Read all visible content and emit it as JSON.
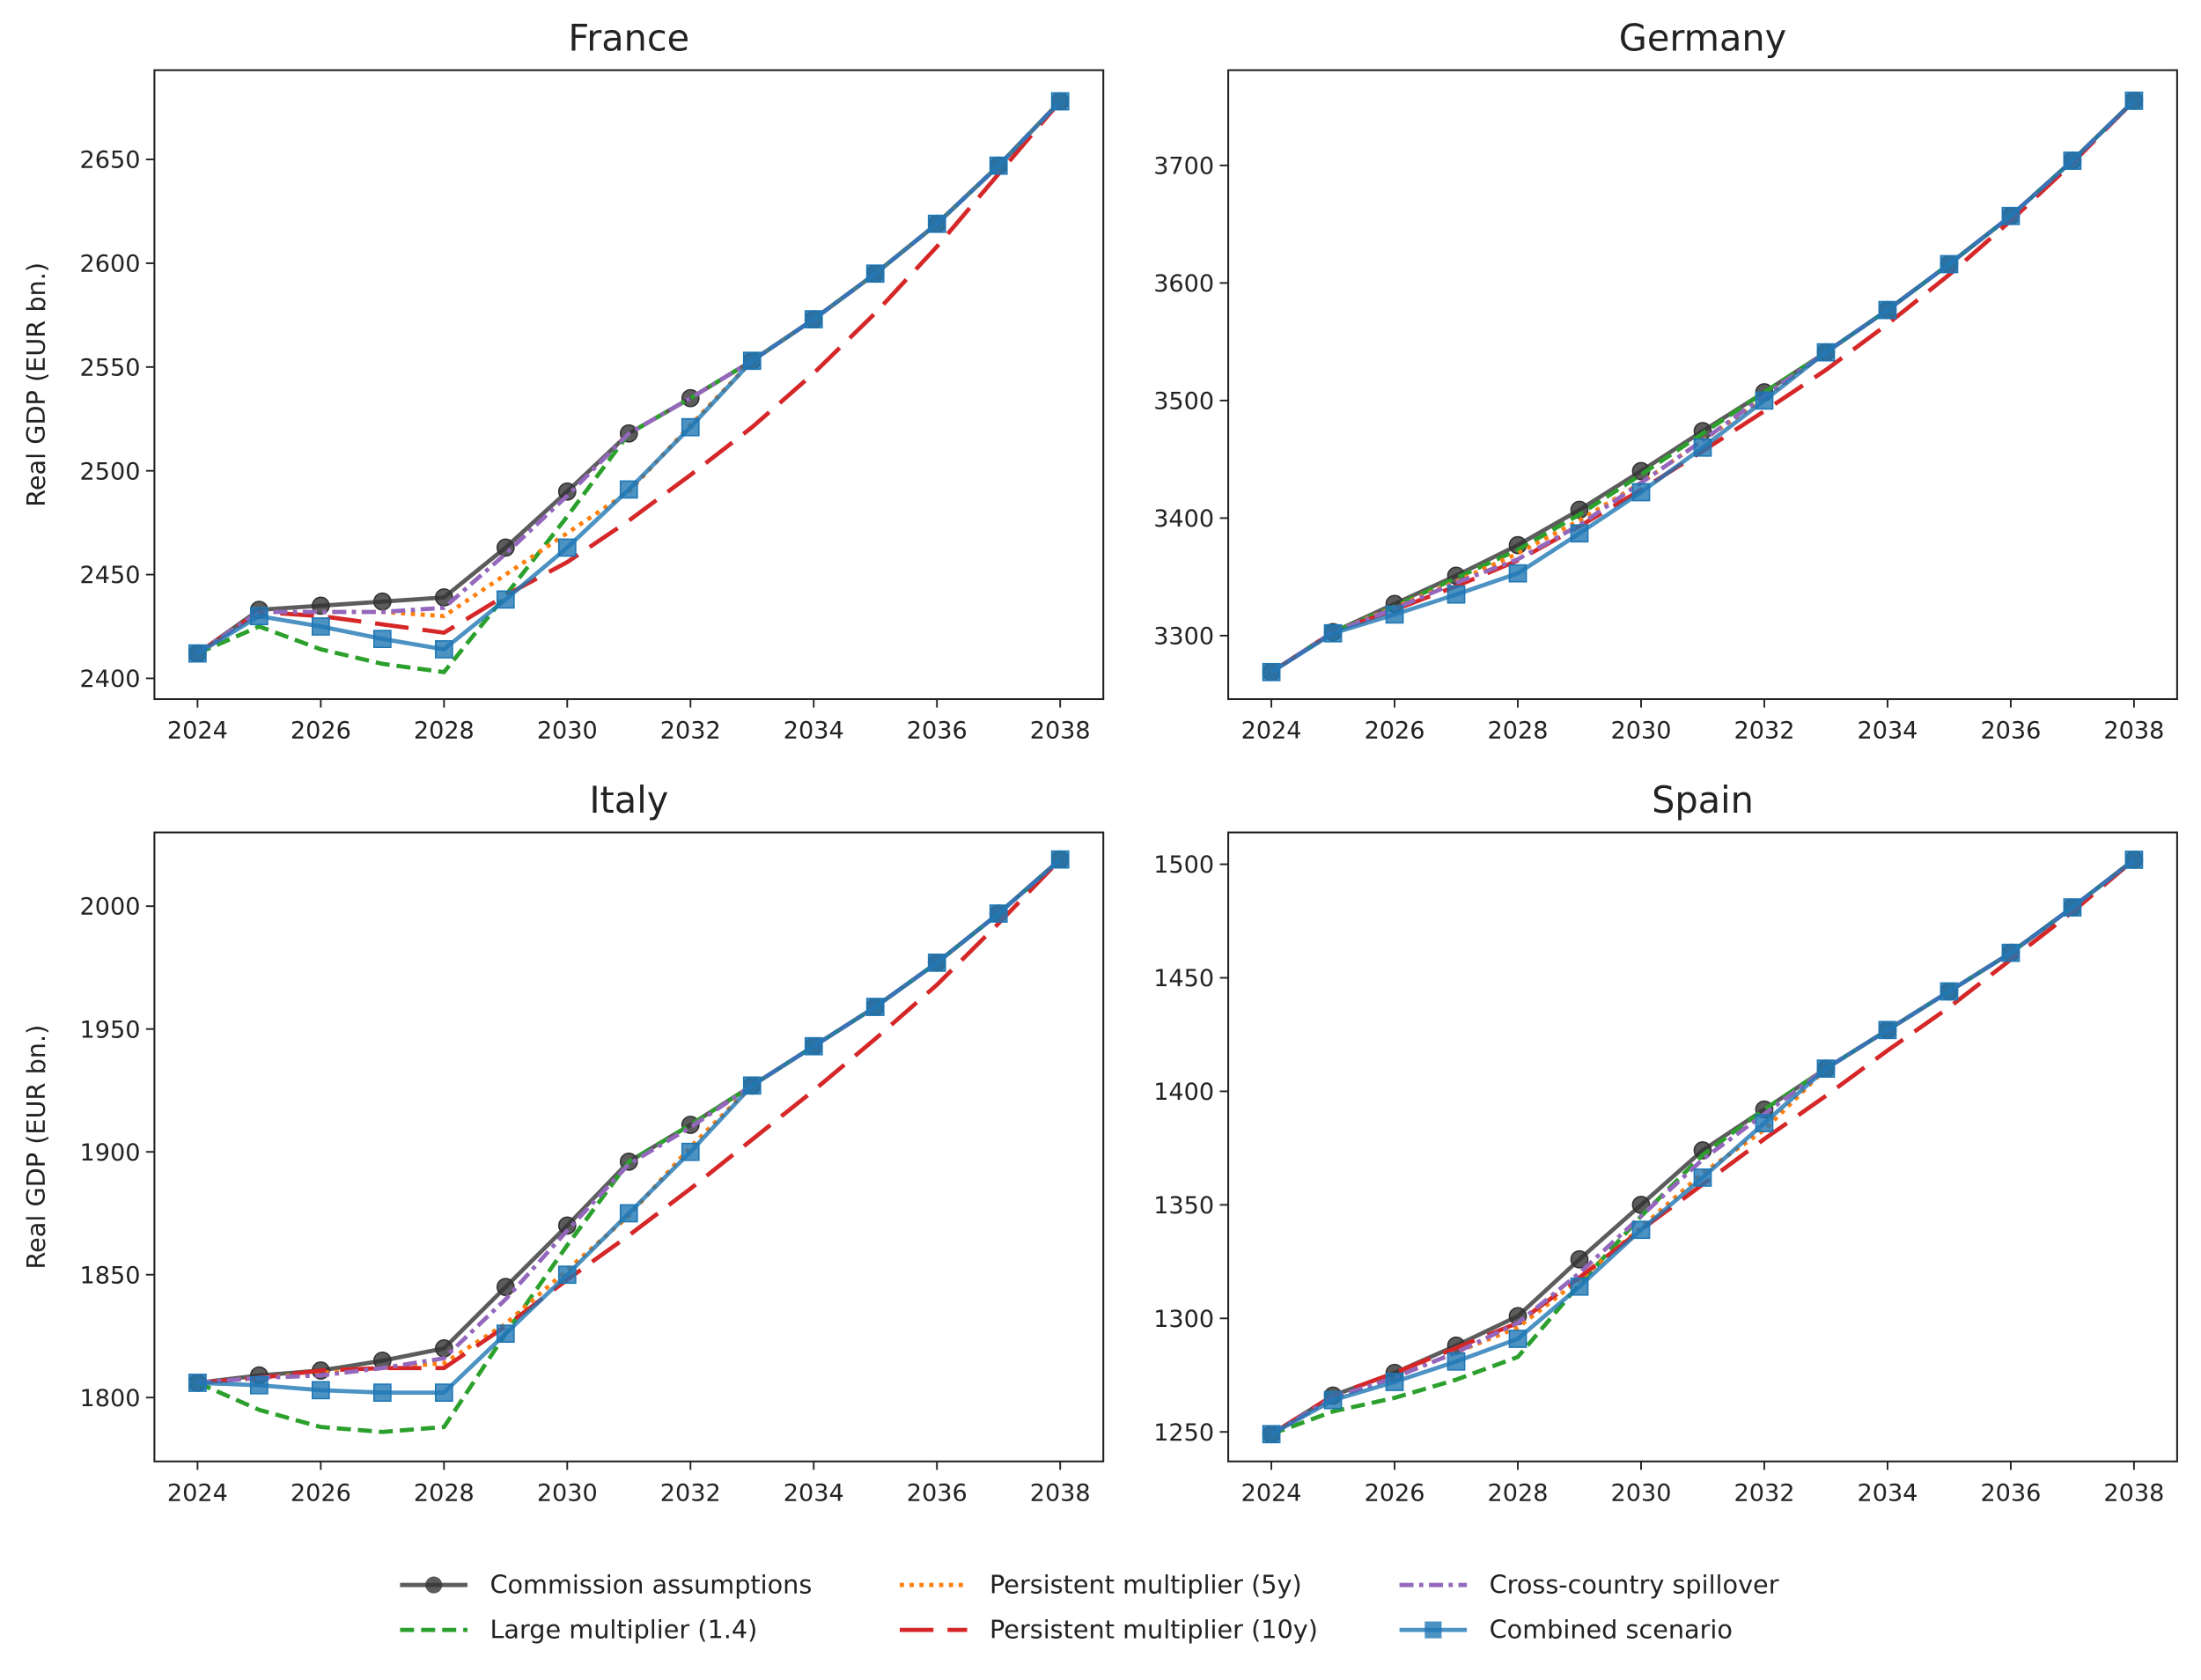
{
  "chart_data": [
    {
      "type": "line",
      "title": "France",
      "ylabel": "Real GDP (EUR bn.)",
      "x": [
        2024,
        2025,
        2026,
        2027,
        2028,
        2029,
        2030,
        2031,
        2032,
        2033,
        2034,
        2035,
        2036,
        2037,
        2038
      ],
      "xlim": [
        2023.3,
        2038.7
      ],
      "xticks": [
        2024,
        2026,
        2028,
        2030,
        2032,
        2034,
        2036,
        2038
      ],
      "ylim": [
        2390,
        2693
      ],
      "yticks": [
        2400,
        2450,
        2500,
        2550,
        2600,
        2650
      ],
      "series": [
        {
          "values": [
            2412,
            2433,
            2435,
            2437,
            2439,
            2463,
            2490,
            2518,
            2535,
            2553,
            2573,
            2595,
            2619,
            2647,
            2678
          ]
        },
        {
          "values": [
            2412,
            2425,
            2414,
            2407,
            2403,
            2440,
            2478,
            2518,
            2535,
            2553,
            2573,
            2595,
            2619,
            2647,
            2678
          ]
        },
        {
          "values": [
            2412,
            2432,
            2432,
            2432,
            2430,
            2450,
            2470,
            2490,
            2522,
            2553,
            2573,
            2595,
            2619,
            2647,
            2678
          ]
        },
        {
          "values": [
            2412,
            2432,
            2430,
            2426,
            2422,
            2440,
            2456,
            2476,
            2498,
            2521,
            2547,
            2576,
            2608,
            2643,
            2678
          ]
        },
        {
          "values": [
            2412,
            2432,
            2432,
            2432,
            2434,
            2460,
            2488,
            2518,
            2535,
            2553,
            2573,
            2595,
            2619,
            2647,
            2678
          ]
        },
        {
          "values": [
            2412,
            2430,
            2425,
            2419,
            2414,
            2438,
            2463,
            2491,
            2521,
            2553,
            2573,
            2595,
            2619,
            2647,
            2678
          ]
        }
      ]
    },
    {
      "type": "line",
      "title": "Germany",
      "x": [
        2024,
        2025,
        2026,
        2027,
        2028,
        2029,
        2030,
        2031,
        2032,
        2033,
        2034,
        2035,
        2036,
        2037,
        2038
      ],
      "xlim": [
        2023.3,
        2038.7
      ],
      "xticks": [
        2024,
        2026,
        2028,
        2030,
        2032,
        2034,
        2036,
        2038
      ],
      "ylim": [
        3246,
        3781
      ],
      "yticks": [
        3300,
        3400,
        3500,
        3600,
        3700
      ],
      "series": [
        {
          "values": [
            3269,
            3303,
            3327,
            3351,
            3377,
            3407,
            3440,
            3474,
            3507,
            3541,
            3577,
            3616,
            3657,
            3704,
            3755
          ]
        },
        {
          "values": [
            3269,
            3303,
            3325,
            3349,
            3373,
            3403,
            3437,
            3472,
            3507,
            3541,
            3577,
            3616,
            3657,
            3704,
            3755
          ]
        },
        {
          "values": [
            3269,
            3303,
            3324,
            3346,
            3370,
            3398,
            3430,
            3466,
            3502,
            3541,
            3577,
            3616,
            3657,
            3704,
            3755
          ]
        },
        {
          "values": [
            3269,
            3303,
            3322,
            3342,
            3364,
            3393,
            3424,
            3457,
            3491,
            3526,
            3565,
            3607,
            3653,
            3702,
            3755
          ]
        },
        {
          "values": [
            3269,
            3303,
            3323,
            3345,
            3365,
            3394,
            3430,
            3466,
            3504,
            3541,
            3577,
            3616,
            3657,
            3704,
            3755
          ]
        },
        {
          "values": [
            3269,
            3302,
            3318,
            3335,
            3353,
            3387,
            3422,
            3460,
            3500,
            3541,
            3577,
            3616,
            3657,
            3704,
            3755
          ]
        }
      ]
    },
    {
      "type": "line",
      "title": "Italy",
      "ylabel": "Real GDP (EUR bn.)",
      "x": [
        2024,
        2025,
        2026,
        2027,
        2028,
        2029,
        2030,
        2031,
        2032,
        2033,
        2034,
        2035,
        2036,
        2037,
        2038
      ],
      "xlim": [
        2023.3,
        2038.7
      ],
      "xticks": [
        2024,
        2026,
        2028,
        2030,
        2032,
        2034,
        2036,
        2038
      ],
      "ylim": [
        1774,
        2030
      ],
      "yticks": [
        1800,
        1850,
        1900,
        1950,
        2000
      ],
      "series": [
        {
          "values": [
            1806,
            1809,
            1811,
            1815,
            1820,
            1845,
            1870,
            1896,
            1911,
            1927,
            1943,
            1959,
            1977,
            1997,
            2019
          ]
        },
        {
          "values": [
            1806,
            1795,
            1788,
            1786,
            1788,
            1826,
            1862,
            1896,
            1911,
            1927,
            1943,
            1959,
            1977,
            1997,
            2019
          ]
        },
        {
          "values": [
            1806,
            1808,
            1810,
            1812,
            1814,
            1830,
            1852,
            1874,
            1902,
            1927,
            1943,
            1959,
            1977,
            1997,
            2019
          ]
        },
        {
          "values": [
            1806,
            1808,
            1811,
            1812,
            1812,
            1829,
            1848,
            1866,
            1885,
            1905,
            1925,
            1946,
            1968,
            1993,
            2019
          ]
        },
        {
          "values": [
            1806,
            1808,
            1809,
            1812,
            1816,
            1840,
            1868,
            1895,
            1910,
            1927,
            1943,
            1959,
            1977,
            1997,
            2019
          ]
        },
        {
          "values": [
            1806,
            1805,
            1803,
            1802,
            1802,
            1826,
            1850,
            1875,
            1900,
            1927,
            1943,
            1959,
            1977,
            1997,
            2019
          ]
        }
      ]
    },
    {
      "type": "line",
      "title": "Spain",
      "x": [
        2024,
        2025,
        2026,
        2027,
        2028,
        2029,
        2030,
        2031,
        2032,
        2033,
        2034,
        2035,
        2036,
        2037,
        2038
      ],
      "xlim": [
        2023.3,
        2038.7
      ],
      "xticks": [
        2024,
        2026,
        2028,
        2030,
        2032,
        2034,
        2036,
        2038
      ],
      "ylim": [
        1237,
        1514
      ],
      "yticks": [
        1250,
        1300,
        1350,
        1400,
        1450,
        1500
      ],
      "series": [
        {
          "values": [
            1249,
            1266,
            1276,
            1288,
            1301,
            1326,
            1350,
            1374,
            1392,
            1410,
            1427,
            1444,
            1461,
            1481,
            1502
          ]
        },
        {
          "values": [
            1249,
            1259,
            1265,
            1273,
            1283,
            1315,
            1345,
            1372,
            1392,
            1410,
            1427,
            1444,
            1461,
            1481,
            1502
          ]
        },
        {
          "values": [
            1249,
            1265,
            1274,
            1285,
            1296,
            1317,
            1340,
            1364,
            1383,
            1410,
            1427,
            1444,
            1461,
            1481,
            1502
          ]
        },
        {
          "values": [
            1249,
            1266,
            1276,
            1287,
            1298,
            1318,
            1339,
            1359,
            1379,
            1398,
            1418,
            1437,
            1458,
            1479,
            1502
          ]
        },
        {
          "values": [
            1249,
            1265,
            1274,
            1285,
            1298,
            1320,
            1345,
            1370,
            1390,
            1410,
            1427,
            1444,
            1461,
            1481,
            1502
          ]
        },
        {
          "values": [
            1249,
            1264,
            1272,
            1281,
            1291,
            1314,
            1339,
            1362,
            1386,
            1410,
            1427,
            1444,
            1461,
            1481,
            1502
          ]
        }
      ]
    }
  ],
  "legend": {
    "entries": [
      {
        "name": "Commission assumptions",
        "color": "#333333",
        "dash": "solid",
        "marker": "circle"
      },
      {
        "name": "Large multiplier (1.4)",
        "color": "#2ca02c",
        "dash": "dashed"
      },
      {
        "name": "Persistent multiplier (5y)",
        "color": "#ff7f0e",
        "dash": "dotted"
      },
      {
        "name": "Persistent multiplier (10y)",
        "color": "#d62728",
        "dash": "longdash"
      },
      {
        "name": "Cross-country spillover",
        "color": "#9467bd",
        "dash": "dashdot"
      },
      {
        "name": "Combined scenario",
        "color": "#1f77b4",
        "dash": "solid",
        "marker": "square"
      }
    ]
  }
}
